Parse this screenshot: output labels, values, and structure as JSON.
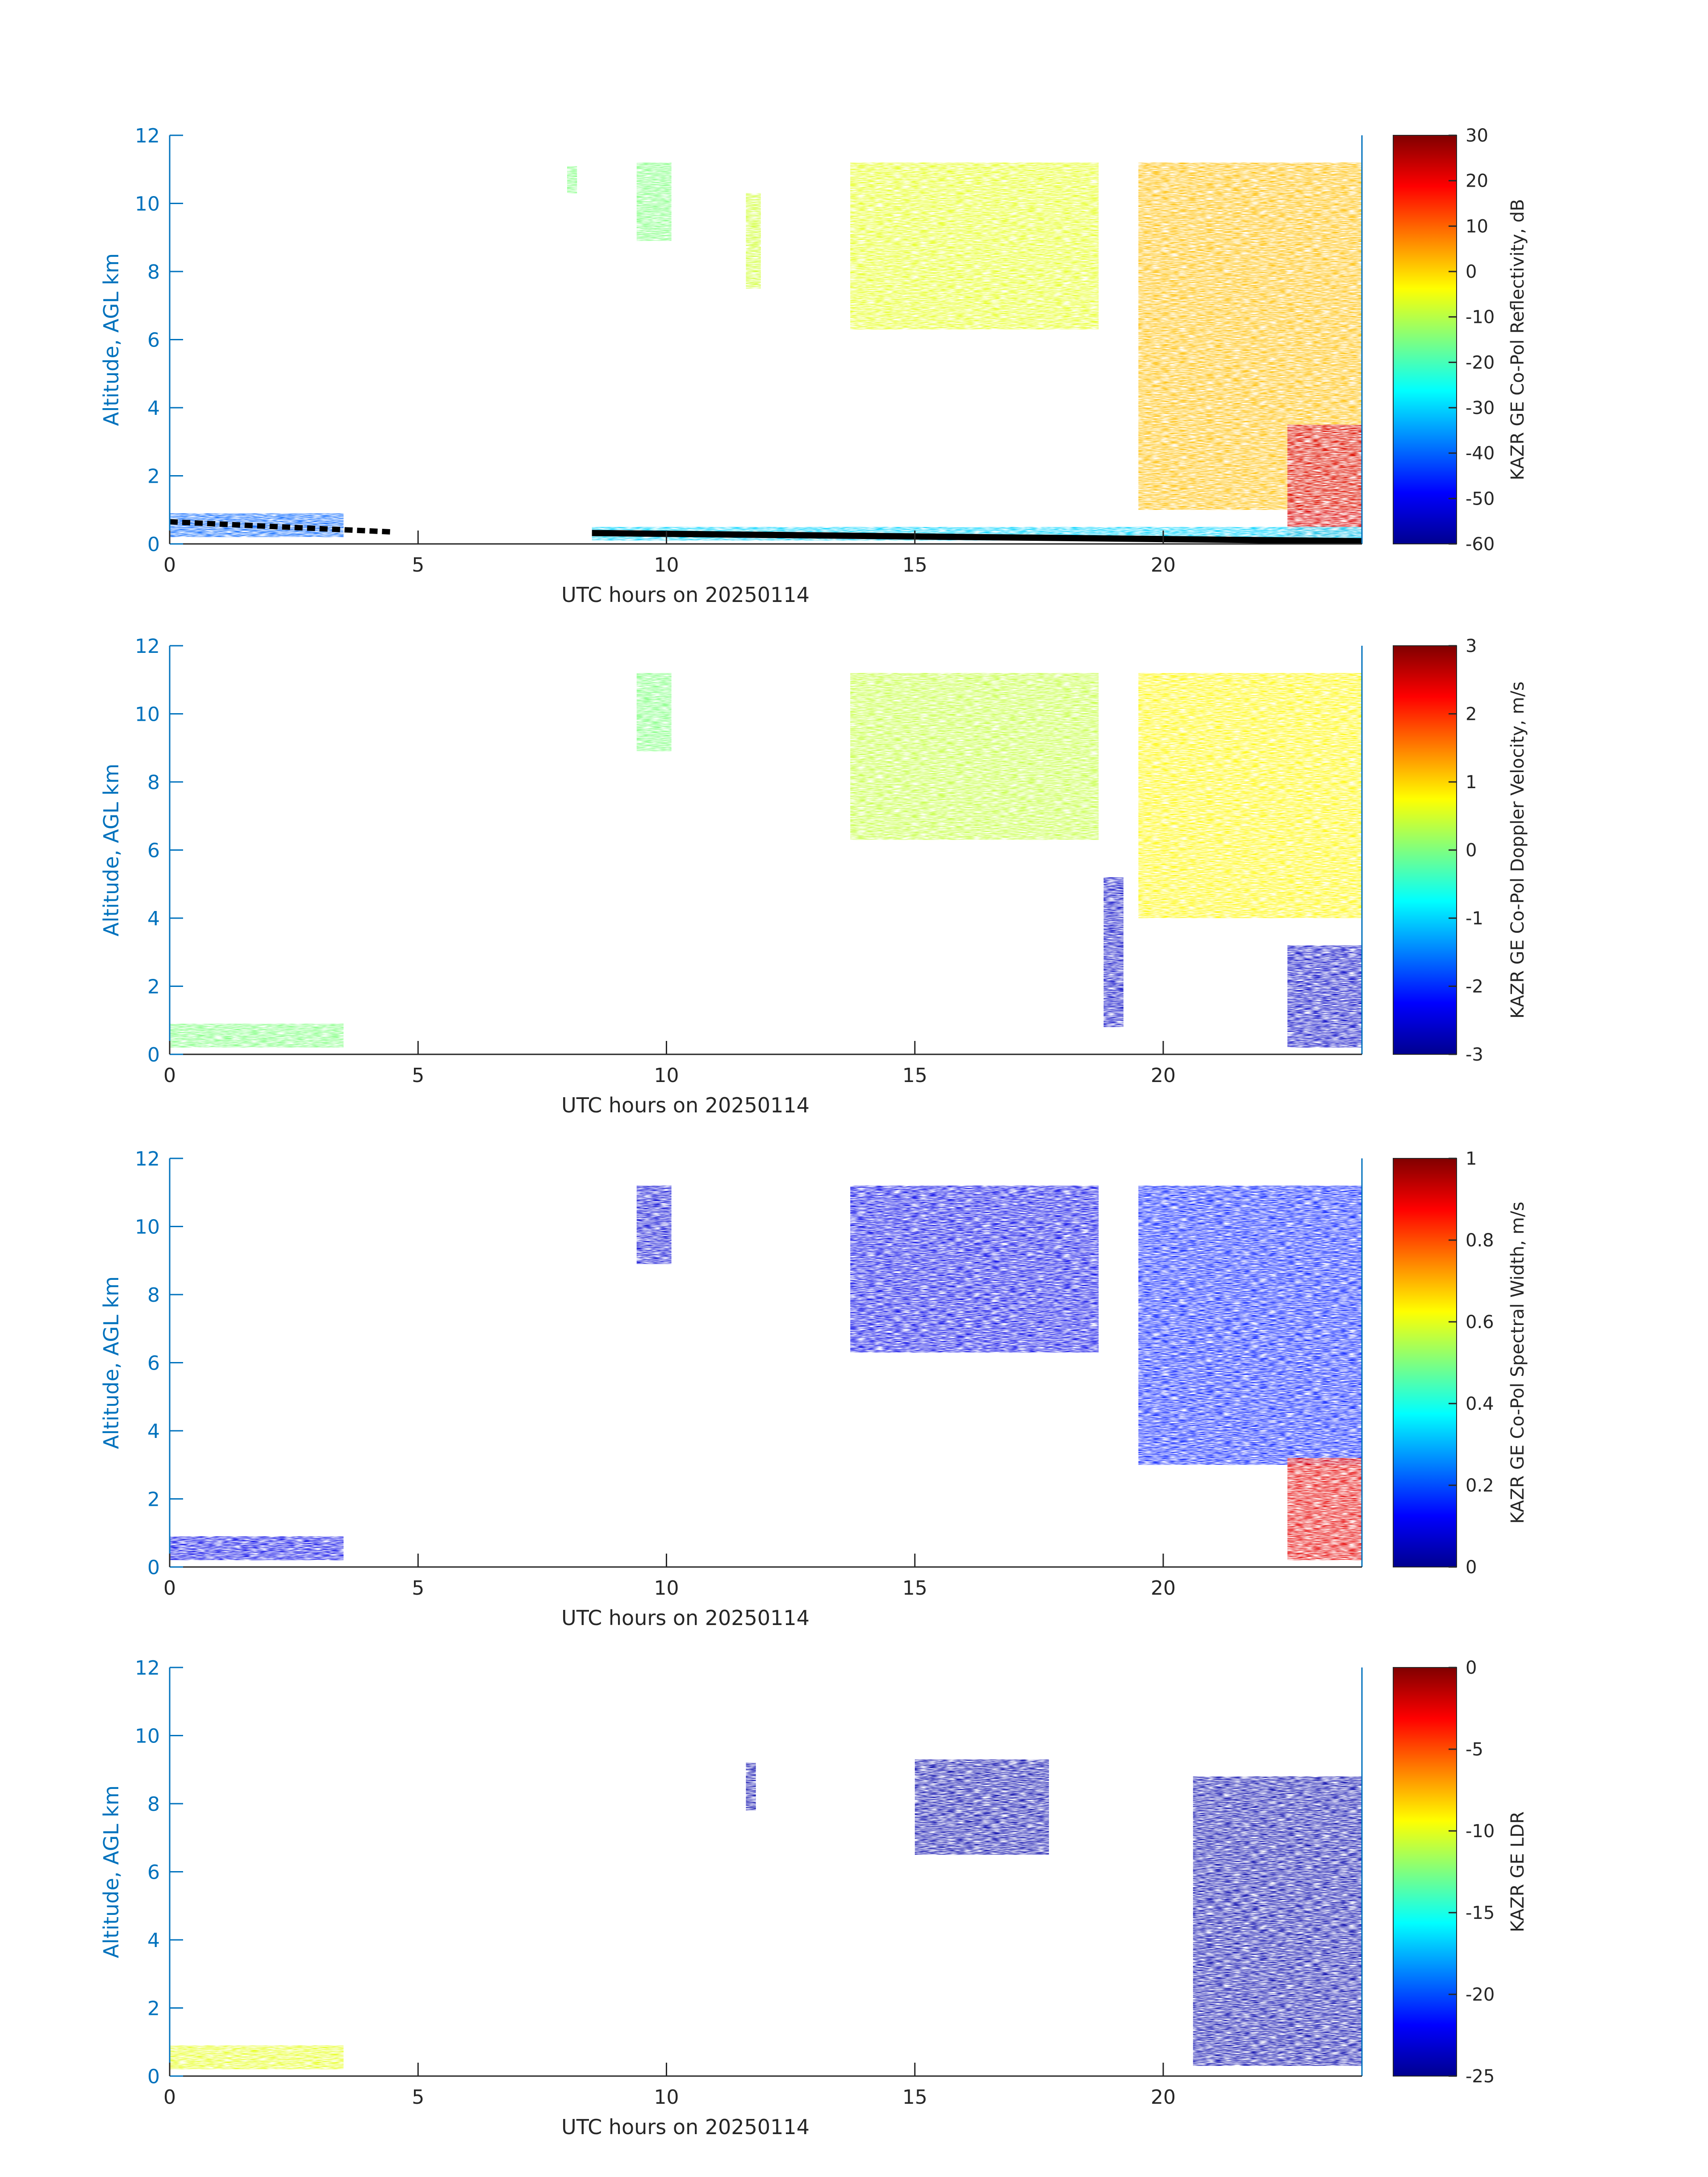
{
  "figure": {
    "panels": [
      {
        "id": "reflectivity",
        "ylabel": "Altitude, AGL km",
        "xlabel": "UTC hours on 20250114",
        "xticks": [
          "0",
          "5",
          "10",
          "15",
          "20"
        ],
        "yticks": [
          "0",
          "2",
          "4",
          "6",
          "8",
          "10",
          "12"
        ],
        "colorbar": {
          "label": "KAZR GE Co-Pol Reflectivity, dB",
          "ticks": [
            "30",
            "20",
            "10",
            "0",
            "-10",
            "-20",
            "-30",
            "-40",
            "-50",
            "-60"
          ],
          "range": [
            -60,
            30
          ]
        }
      },
      {
        "id": "doppler-velocity",
        "ylabel": "Altitude, AGL km",
        "xlabel": "UTC hours on 20250114",
        "xticks": [
          "0",
          "5",
          "10",
          "15",
          "20"
        ],
        "yticks": [
          "0",
          "2",
          "4",
          "6",
          "8",
          "10",
          "12"
        ],
        "colorbar": {
          "label": "KAZR GE Co-Pol Doppler Velocity, m/s",
          "ticks": [
            "3",
            "2",
            "1",
            "0",
            "-1",
            "-2",
            "-3"
          ],
          "range": [
            -3,
            3
          ]
        }
      },
      {
        "id": "spectral-width",
        "ylabel": "Altitude, AGL km",
        "xlabel": "UTC hours on 20250114",
        "xticks": [
          "0",
          "5",
          "10",
          "15",
          "20"
        ],
        "yticks": [
          "0",
          "2",
          "4",
          "6",
          "8",
          "10",
          "12"
        ],
        "colorbar": {
          "label": "KAZR GE Co-Pol Spectral Width, m/s",
          "ticks": [
            "1",
            "0.8",
            "0.6",
            "0.4",
            "0.2",
            "0"
          ],
          "range": [
            0,
            1
          ]
        }
      },
      {
        "id": "ldr",
        "ylabel": "Altitude, AGL km",
        "xlabel": "UTC hours on 20250114",
        "xticks": [
          "0",
          "5",
          "10",
          "15",
          "20"
        ],
        "yticks": [
          "0",
          "2",
          "4",
          "6",
          "8",
          "10",
          "12"
        ],
        "colorbar": {
          "label": "KAZR GE LDR",
          "ticks": [
            "0",
            "-5",
            "-10",
            "-15",
            "-20",
            "-25"
          ],
          "range": [
            -25,
            0
          ]
        }
      }
    ],
    "colors": {
      "axis": "#0072bd",
      "text": "#262626",
      "ground_clutter": "#000000"
    }
  },
  "chart_data": [
    {
      "type": "heatmap",
      "xlabel": "UTC hours on 20250114",
      "ylabel": "Altitude, AGL km",
      "xlim": [
        0,
        24
      ],
      "ylim": [
        0,
        12
      ],
      "colorbar_label": "KAZR GE Co-Pol Reflectivity, dB",
      "zlim": [
        -60,
        30
      ],
      "colormap": "jet",
      "features": [
        {
          "x": [
            0,
            3.5
          ],
          "y": [
            0.2,
            0.9
          ],
          "value": -40
        },
        {
          "x": [
            8,
            8.2
          ],
          "y": [
            10.3,
            11.1
          ],
          "value": -15
        },
        {
          "x": [
            9.4,
            10.1
          ],
          "y": [
            8.9,
            11.2
          ],
          "value": -15
        },
        {
          "x": [
            11.6,
            11.9
          ],
          "y": [
            7.5,
            10.3
          ],
          "value": -8
        },
        {
          "x": [
            13.7,
            18.7
          ],
          "y": [
            6.3,
            11.2
          ],
          "value": -6
        },
        {
          "x": [
            19.5,
            24
          ],
          "y": [
            1.0,
            11.2
          ],
          "value": 2
        },
        {
          "x": [
            22.5,
            24
          ],
          "y": [
            0.2,
            3.5
          ],
          "value": 22
        },
        {
          "x": [
            8.5,
            24
          ],
          "y": [
            0.1,
            0.5
          ],
          "value": -30
        }
      ]
    },
    {
      "type": "heatmap",
      "xlabel": "UTC hours on 20250114",
      "ylabel": "Altitude, AGL km",
      "xlim": [
        0,
        24
      ],
      "ylim": [
        0,
        12
      ],
      "colorbar_label": "KAZR GE Co-Pol Doppler Velocity, m/s",
      "zlim": [
        -3,
        3
      ],
      "colormap": "jet",
      "features": [
        {
          "x": [
            0,
            3.5
          ],
          "y": [
            0.2,
            0.9
          ],
          "value": 0
        },
        {
          "x": [
            9.4,
            10.1
          ],
          "y": [
            8.9,
            11.2
          ],
          "value": 0
        },
        {
          "x": [
            13.7,
            18.7
          ],
          "y": [
            6.3,
            11.2
          ],
          "value": 0.4
        },
        {
          "x": [
            19.5,
            24
          ],
          "y": [
            4.0,
            11.2
          ],
          "value": 0.8
        },
        {
          "x": [
            22.5,
            24
          ],
          "y": [
            0.2,
            3.2
          ],
          "value": -2.6
        },
        {
          "x": [
            18.8,
            19.2
          ],
          "y": [
            0.8,
            5.2
          ],
          "value": -2.6
        }
      ]
    },
    {
      "type": "heatmap",
      "xlabel": "UTC hours on 20250114",
      "ylabel": "Altitude, AGL km",
      "xlim": [
        0,
        24
      ],
      "ylim": [
        0,
        12
      ],
      "colorbar_label": "KAZR GE Co-Pol Spectral Width, m/s",
      "zlim": [
        0,
        1
      ],
      "colormap": "jet",
      "features": [
        {
          "x": [
            0,
            3.5
          ],
          "y": [
            0.2,
            0.9
          ],
          "value": 0.1
        },
        {
          "x": [
            9.4,
            10.1
          ],
          "y": [
            8.9,
            11.2
          ],
          "value": 0.08
        },
        {
          "x": [
            13.7,
            18.7
          ],
          "y": [
            6.3,
            11.2
          ],
          "value": 0.1
        },
        {
          "x": [
            19.5,
            24
          ],
          "y": [
            3.0,
            11.2
          ],
          "value": 0.15
        },
        {
          "x": [
            22.5,
            24
          ],
          "y": [
            0.2,
            3.2
          ],
          "value": 0.9
        }
      ]
    },
    {
      "type": "heatmap",
      "xlabel": "UTC hours on 20250114",
      "ylabel": "Altitude, AGL km",
      "xlim": [
        0,
        24
      ],
      "ylim": [
        0,
        12
      ],
      "colorbar_label": "KAZR GE LDR",
      "zlim": [
        -25,
        0
      ],
      "colormap": "jet",
      "features": [
        {
          "x": [
            0,
            3.5
          ],
          "y": [
            0.2,
            0.9
          ],
          "value": -10
        },
        {
          "x": [
            11.6,
            11.8
          ],
          "y": [
            7.8,
            9.2
          ],
          "value": -24
        },
        {
          "x": [
            15,
            17.7
          ],
          "y": [
            6.5,
            9.3
          ],
          "value": -24
        },
        {
          "x": [
            20.6,
            24
          ],
          "y": [
            0.3,
            8.8
          ],
          "value": -24
        }
      ]
    }
  ]
}
